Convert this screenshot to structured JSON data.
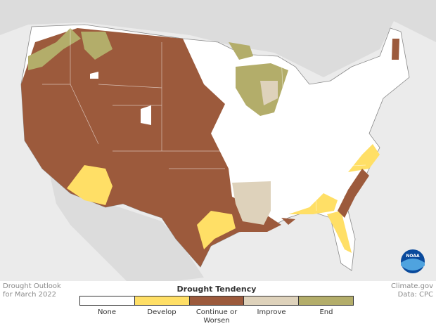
{
  "header": {
    "title": "Drought Outlook",
    "subtitle": "for March 2022"
  },
  "legend": {
    "title": "Drought Tendency",
    "items": [
      {
        "label": "None",
        "color": "#ffffff"
      },
      {
        "label": "Develop",
        "color": "#ffdf66"
      },
      {
        "label": "Continue or Worsen",
        "color": "#9c5a3c"
      },
      {
        "label": "Improve",
        "color": "#ded2bb"
      },
      {
        "label": "End",
        "color": "#b3ad6a"
      }
    ]
  },
  "credits": {
    "source": "Climate.gov",
    "data": "Data: CPC"
  },
  "logo": "NOAA"
}
